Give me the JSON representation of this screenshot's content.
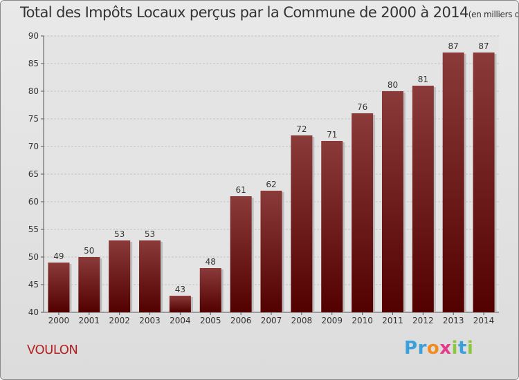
{
  "title": "Total des Impôts Locaux perçus par la Commune de 2000 à 2014",
  "unit": "(en milliers d'€)",
  "commune": "VOULON",
  "logo": {
    "text": "Proxiti",
    "letters": [
      "P",
      "r",
      "o",
      "x",
      "i",
      "t",
      "i"
    ],
    "colors": [
      "#3aa0dc",
      "#3aa0dc",
      "#f28c1e",
      "#e53a8a",
      "#8cc63f",
      "#3aa0dc",
      "#8cc63f"
    ]
  },
  "chart_data": {
    "type": "bar",
    "title": "Total des Impôts Locaux perçus par la Commune de 2000 à 2014",
    "xlabel": "",
    "ylabel": "",
    "categories": [
      "2000",
      "2001",
      "2002",
      "2003",
      "2004",
      "2005",
      "2006",
      "2007",
      "2008",
      "2009",
      "2010",
      "2011",
      "2012",
      "2013",
      "2014"
    ],
    "values": [
      49,
      50,
      53,
      53,
      43,
      48,
      61,
      62,
      72,
      71,
      76,
      80,
      81,
      87,
      87
    ],
    "ylim": [
      40,
      90
    ],
    "yticks": [
      40,
      45,
      50,
      55,
      60,
      65,
      70,
      75,
      80,
      85,
      90
    ],
    "grid": true,
    "bar_color_top": "#8b3a3a",
    "bar_color_bottom": "#520000"
  }
}
